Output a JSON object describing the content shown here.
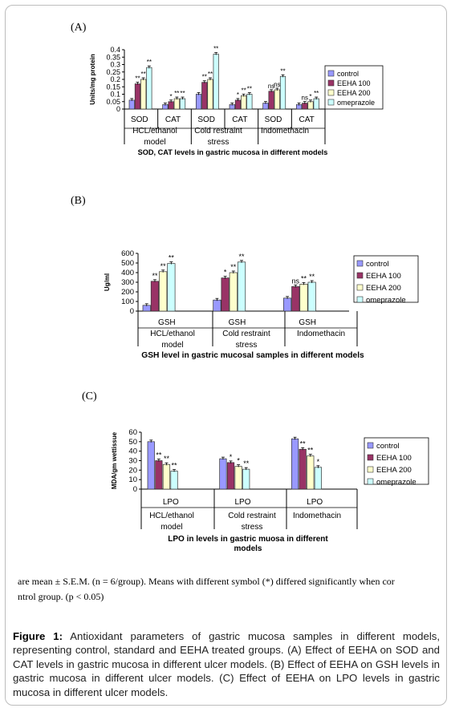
{
  "note": {
    "line1": "are mean ± S.E.M. (n = 6/group). Means with different symbol (*) differed significantly when cor",
    "line2": "ntrol group. (p < 0.05)"
  },
  "caption": {
    "label": "Figure 1:",
    "text": " Antioxidant parameters of gastric mucosa samples in different models, representing control, standard and EEHA treated groups. (A) Effect of EEHA on SOD and CAT levels in gastric mucosa in different ulcer models. (B) Effect of EEHA on GSH levels in gastric mucosa in different ulcer models. (C) Effect of EEHA on LPO levels in gastric mucosa in different ulcer models."
  },
  "colors": {
    "control": "#9999ff",
    "eeha100": "#993366",
    "eeha200": "#ffffcc",
    "omeprazole": "#ccffff"
  },
  "chart_data": [
    {
      "type": "bar",
      "panel_label": "(A)",
      "title": "SOD, CAT levels in gastric mucosa in different models",
      "ylabel": "Units/mg protein",
      "ylim": [
        0,
        0.4
      ],
      "yticks": [
        "0.4",
        "0.35",
        "0.3",
        "0.25",
        "0.2",
        "0.15",
        "0.1",
        "0.05",
        "0"
      ],
      "legend": [
        "control",
        "EEHA 100",
        "EEHA 200",
        "omeprazole"
      ],
      "categories": [
        "SOD",
        "CAT",
        "SOD",
        "CAT",
        "SOD",
        "CAT"
      ],
      "models": [
        "HCL/ethanol model",
        "Cold restraint stress",
        "Indomethacin"
      ],
      "series": [
        {
          "name": "control",
          "values": [
            0.06,
            0.03,
            0.1,
            0.03,
            0.04,
            0.03
          ]
        },
        {
          "name": "EEHA 100",
          "values": [
            0.17,
            0.05,
            0.18,
            0.06,
            0.12,
            0.04
          ]
        },
        {
          "name": "EEHA 200",
          "values": [
            0.2,
            0.07,
            0.2,
            0.09,
            0.13,
            0.05
          ]
        },
        {
          "name": "omeprazole",
          "values": [
            0.28,
            0.07,
            0.37,
            0.1,
            0.22,
            0.07
          ]
        }
      ],
      "annotations": [
        [
          "",
          "**",
          "**",
          "**"
        ],
        [
          "",
          "*",
          "**",
          "**"
        ],
        [
          "",
          "**",
          "**",
          "**"
        ],
        [
          "",
          "*",
          "**",
          "**"
        ],
        [
          "",
          "ns",
          "ns",
          "**"
        ],
        [
          "",
          "ns",
          "*",
          "**"
        ]
      ]
    },
    {
      "type": "bar",
      "panel_label": "(B)",
      "title": "GSH level in gastric mucosal samples in different models",
      "ylabel": "Ug/ml",
      "ylim": [
        0,
        600
      ],
      "yticks": [
        "600",
        "500",
        "400",
        "300",
        "200",
        "100",
        "0"
      ],
      "legend": [
        "control",
        "EEHA 100",
        "EEHA 200",
        "omeprazole"
      ],
      "categories": [
        "GSH",
        "GSH",
        "GSH"
      ],
      "models": [
        "HCL/ethanol model",
        "Cold restraint stress",
        "Indomethacin"
      ],
      "series": [
        {
          "name": "control",
          "values": [
            60,
            115,
            135
          ]
        },
        {
          "name": "EEHA 100",
          "values": [
            310,
            345,
            255
          ]
        },
        {
          "name": "EEHA 200",
          "values": [
            410,
            400,
            280
          ]
        },
        {
          "name": "omeprazole",
          "values": [
            495,
            510,
            300
          ]
        }
      ],
      "annotations": [
        [
          "",
          "**",
          "**",
          "**"
        ],
        [
          "",
          "*",
          "**",
          "**"
        ],
        [
          "",
          "ns",
          "**",
          "**"
        ]
      ]
    },
    {
      "type": "bar",
      "panel_label": "(C)",
      "title": "LPO in levels in gastric muosa in different models",
      "ylabel": "MDA/gm wettissue",
      "ylim": [
        0,
        60
      ],
      "yticks": [
        "60",
        "50",
        "40",
        "30",
        "20",
        "10",
        "0"
      ],
      "legend": [
        "control",
        "EEHA 100",
        "EEHA 200",
        "omeprazole"
      ],
      "categories": [
        "LPO",
        "LPO",
        "LPO"
      ],
      "models": [
        "HCL/ethanol model",
        "Cold restraint stress",
        "Indomethacin"
      ],
      "series": [
        {
          "name": "control",
          "values": [
            50,
            32,
            53
          ]
        },
        {
          "name": "EEHA 100",
          "values": [
            30,
            28,
            42
          ]
        },
        {
          "name": "EEHA 200",
          "values": [
            26,
            24,
            35
          ]
        },
        {
          "name": "omeprazole",
          "values": [
            19,
            21,
            23
          ]
        }
      ],
      "annotations": [
        [
          "",
          "**",
          "**",
          "**"
        ],
        [
          "",
          "*",
          "*",
          "**"
        ],
        [
          "",
          "**",
          "**",
          "*"
        ]
      ]
    }
  ]
}
